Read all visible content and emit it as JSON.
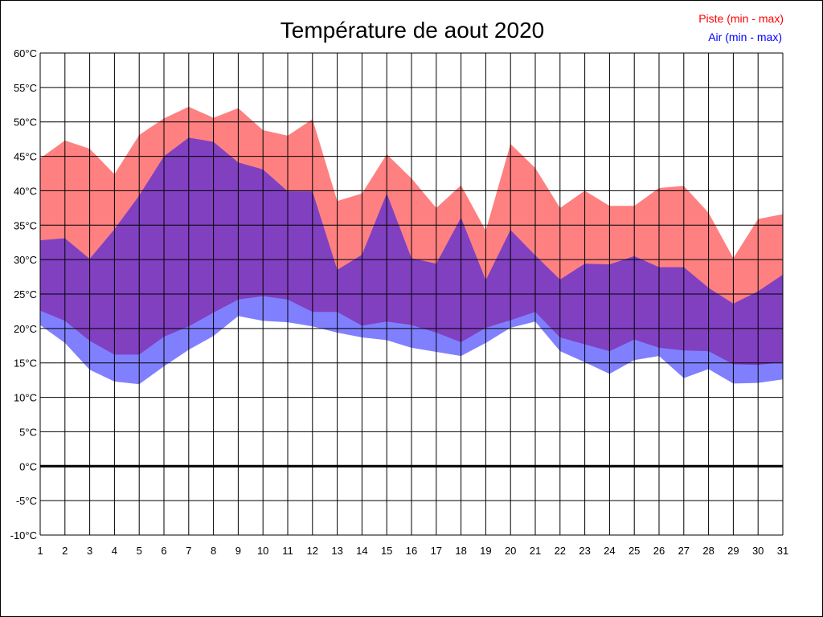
{
  "chart_data": {
    "type": "area",
    "title": "Température de aout 2020",
    "xlabel": "",
    "ylabel": "",
    "x": [
      1,
      2,
      3,
      4,
      5,
      6,
      7,
      8,
      9,
      10,
      11,
      12,
      13,
      14,
      15,
      16,
      17,
      18,
      19,
      20,
      21,
      22,
      23,
      24,
      25,
      26,
      27,
      28,
      29,
      30,
      31
    ],
    "ylim": [
      -10,
      60
    ],
    "ytick_step": 5,
    "ytick_suffix": "°C",
    "grid": true,
    "legend_position": "top-right",
    "series": [
      {
        "name": "Piste (min - max)",
        "color": "#ff0000",
        "fill": "#ff8080",
        "min": [
          22.6,
          21.1,
          18.2,
          16.2,
          16.2,
          18.8,
          20.3,
          22.3,
          24.2,
          24.7,
          24.2,
          22.4,
          22.4,
          20.4,
          21.0,
          20.5,
          19.4,
          18.0,
          20.1,
          21.2,
          22.4,
          18.7,
          17.7,
          16.7,
          18.4,
          17.2,
          16.8,
          16.7,
          14.8,
          14.7,
          15.1
        ],
        "max": [
          44.7,
          47.3,
          46.1,
          42.4,
          48.1,
          50.5,
          52.2,
          50.6,
          52.0,
          48.8,
          48.0,
          50.4,
          38.5,
          39.6,
          45.3,
          41.8,
          37.5,
          40.8,
          34.2,
          46.8,
          43.3,
          37.5,
          40.0,
          37.8,
          37.8,
          40.4,
          40.7,
          36.8,
          30.2,
          35.9,
          36.6
        ]
      },
      {
        "name": "Air (min - max)",
        "color": "#0000ff",
        "fill": "#8080ff",
        "min": [
          20.5,
          17.9,
          14.0,
          12.3,
          11.9,
          14.5,
          16.9,
          18.9,
          21.8,
          21.1,
          20.9,
          20.3,
          19.4,
          18.7,
          18.3,
          17.2,
          16.6,
          16.0,
          17.9,
          20.1,
          21.0,
          16.7,
          15.1,
          13.4,
          15.4,
          16.0,
          12.8,
          14.1,
          12.0,
          12.1,
          12.6
        ],
        "max": [
          32.8,
          33.1,
          30.1,
          34.4,
          39.3,
          45.0,
          47.7,
          47.1,
          44.1,
          43.1,
          39.9,
          39.9,
          28.5,
          30.7,
          39.6,
          30.2,
          29.4,
          36.1,
          27.0,
          34.3,
          30.6,
          27.1,
          29.4,
          29.3,
          30.5,
          28.9,
          28.9,
          25.9,
          23.6,
          25.4,
          27.8
        ]
      }
    ],
    "overlap_fill": "#8040c0"
  }
}
